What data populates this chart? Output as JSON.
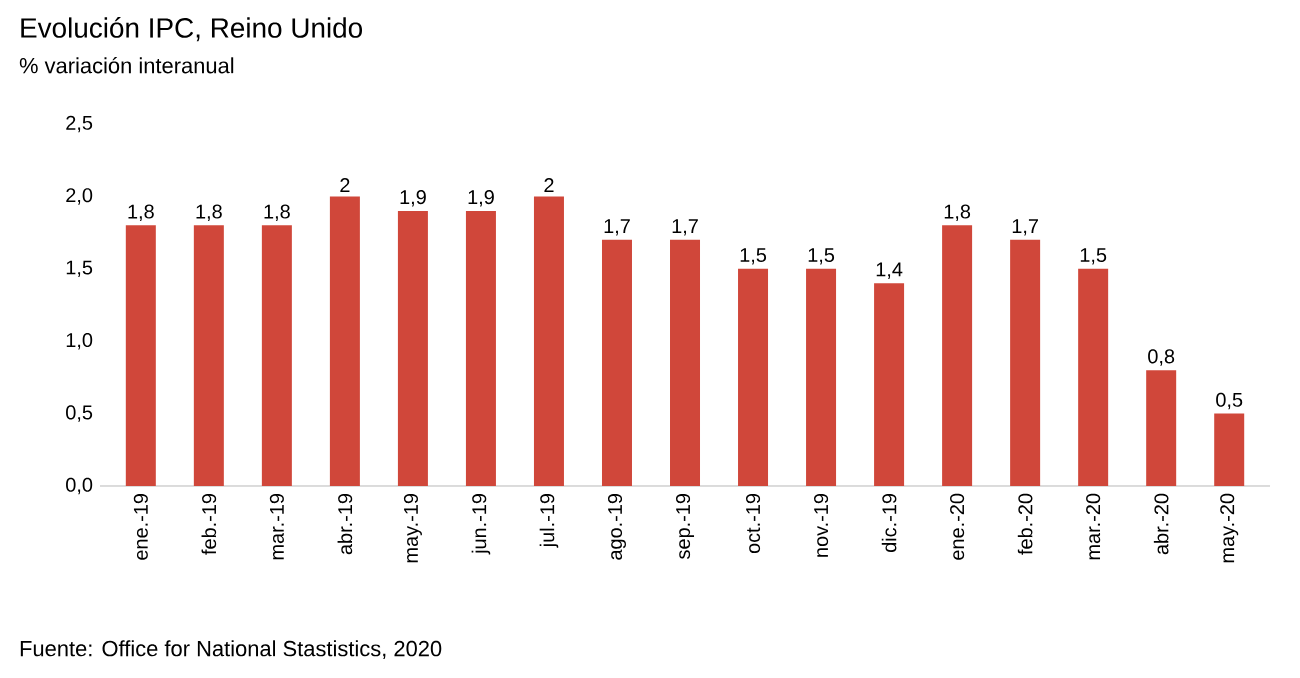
{
  "chart_data": {
    "type": "bar",
    "title": "Evolución IPC, Reino Unido",
    "subtitle": "% variación interanual",
    "categories": [
      "ene.-19",
      "feb.-19",
      "mar.-19",
      "abr.-19",
      "may.-19",
      "jun.-19",
      "jul.-19",
      "ago.-19",
      "sep.-19",
      "oct.-19",
      "nov.-19",
      "dic.-19",
      "ene.-20",
      "feb.-20",
      "mar.-20",
      "abr.-20",
      "may.-20"
    ],
    "values": [
      1.8,
      1.8,
      1.8,
      2,
      1.9,
      1.9,
      2,
      1.7,
      1.7,
      1.5,
      1.5,
      1.4,
      1.8,
      1.7,
      1.5,
      0.8,
      0.5
    ],
    "value_labels": [
      "1,8",
      "1,8",
      "1,8",
      "2",
      "1,9",
      "1,9",
      "2",
      "1,7",
      "1,7",
      "1,5",
      "1,5",
      "1,4",
      "1,8",
      "1,7",
      "1,5",
      "0,8",
      "0,5"
    ],
    "color": "#d0473a",
    "ylim": [
      0,
      2.5
    ],
    "yticks": [
      {
        "value": 0,
        "label": "0,0"
      },
      {
        "value": 0.5,
        "label": "0,5"
      },
      {
        "value": 1,
        "label": "1,0"
      },
      {
        "value": 1.5,
        "label": "1,5"
      },
      {
        "value": 2,
        "label": "2,0"
      },
      {
        "value": 2.5,
        "label": "2,5"
      }
    ],
    "annotations": [
      "Fuente: Office for National Stastistics, 2020"
    ]
  }
}
